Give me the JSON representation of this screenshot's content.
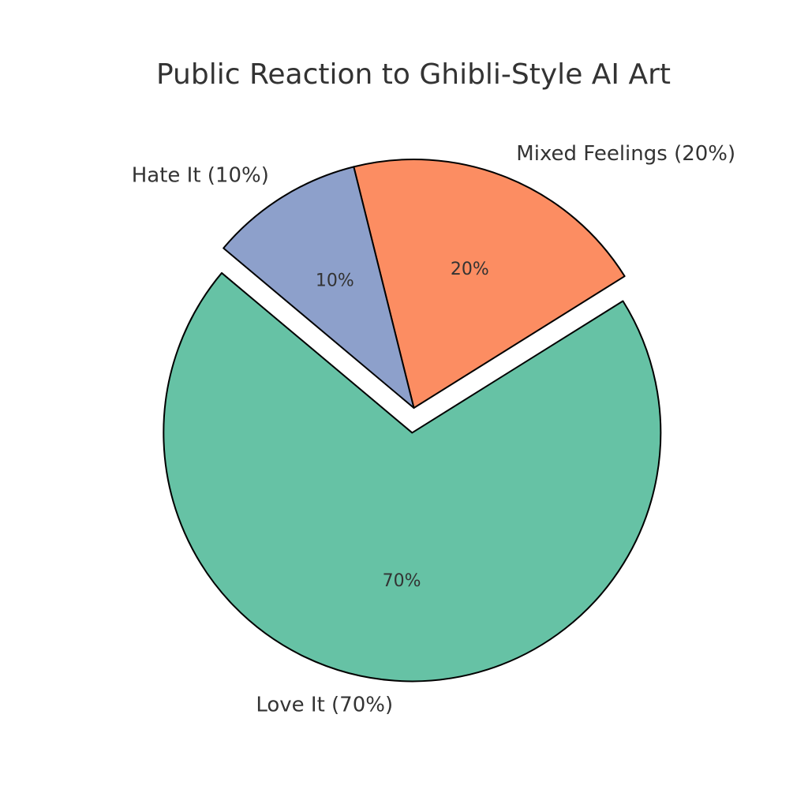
{
  "chart_data": {
    "type": "pie",
    "title": "Public Reaction to Ghibli-Style AI Art",
    "categories": [
      "Love It (70%)",
      "Mixed Feelings (20%)",
      "Hate It (10%)"
    ],
    "values": [
      70,
      20,
      10
    ],
    "value_labels": [
      "70%",
      "20%",
      "10%"
    ],
    "colors": [
      "#66c2a5",
      "#fc8d62",
      "#8da0cb"
    ]
  }
}
